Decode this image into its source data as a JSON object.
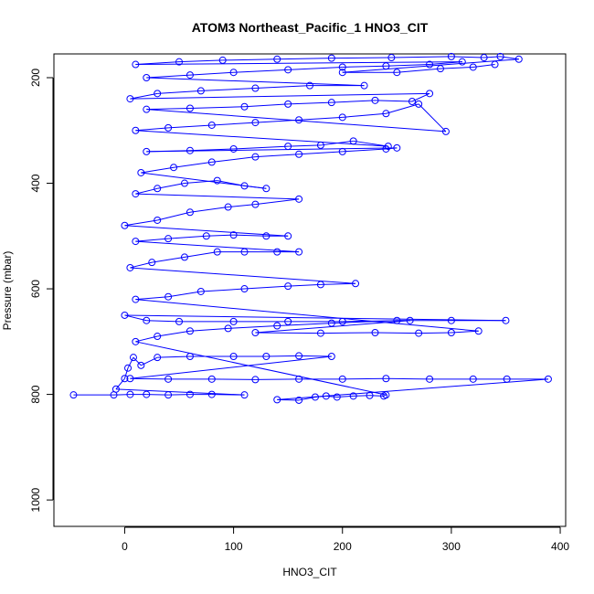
{
  "chart_data": {
    "type": "scatter",
    "title": "ATOM3 Northeast_Pacific_1 HNO3_CIT",
    "xlabel": "HNO3_CIT",
    "ylabel": "Pressure (mbar)",
    "xlim": [
      -65,
      405
    ],
    "ylim": [
      1050,
      155
    ],
    "y_reversed": true,
    "x_ticks": [
      0,
      100,
      200,
      300,
      400
    ],
    "y_ticks": [
      200,
      400,
      600,
      800,
      1000
    ],
    "marker": "open-circle",
    "connect_points": true,
    "color": "#0000ff",
    "series": [
      {
        "points": [
          [
            -47,
            801
          ],
          [
            -10,
            801
          ],
          [
            5,
            800
          ],
          [
            20,
            800
          ],
          [
            40,
            801
          ],
          [
            60,
            800
          ],
          [
            80,
            800
          ],
          [
            110,
            801
          ],
          [
            -8,
            790
          ],
          [
            0,
            770
          ],
          [
            3,
            750
          ],
          [
            8,
            730
          ],
          [
            15,
            745
          ],
          [
            30,
            730
          ],
          [
            60,
            728
          ],
          [
            100,
            728
          ],
          [
            130,
            728
          ],
          [
            160,
            727
          ],
          [
            190,
            728
          ],
          [
            5,
            770
          ],
          [
            40,
            771
          ],
          [
            80,
            771
          ],
          [
            120,
            772
          ],
          [
            160,
            771
          ],
          [
            200,
            771
          ],
          [
            240,
            770
          ],
          [
            280,
            771
          ],
          [
            320,
            771
          ],
          [
            351,
            771
          ],
          [
            389,
            771
          ],
          [
            140,
            810
          ],
          [
            160,
            811
          ],
          [
            175,
            805
          ],
          [
            185,
            803
          ],
          [
            195,
            805
          ],
          [
            210,
            803
          ],
          [
            225,
            802
          ],
          [
            238,
            803
          ],
          [
            240,
            801
          ],
          [
            10,
            700
          ],
          [
            30,
            690
          ],
          [
            60,
            680
          ],
          [
            95,
            675
          ],
          [
            140,
            670
          ],
          [
            190,
            665
          ],
          [
            250,
            660
          ],
          [
            300,
            660
          ],
          [
            350,
            660
          ],
          [
            0,
            650
          ],
          [
            20,
            660
          ],
          [
            50,
            662
          ],
          [
            100,
            662
          ],
          [
            150,
            662
          ],
          [
            200,
            662
          ],
          [
            262,
            660
          ],
          [
            120,
            683
          ],
          [
            180,
            684
          ],
          [
            230,
            683
          ],
          [
            270,
            684
          ],
          [
            300,
            683
          ],
          [
            325,
            680
          ],
          [
            10,
            620
          ],
          [
            40,
            615
          ],
          [
            70,
            605
          ],
          [
            110,
            600
          ],
          [
            150,
            595
          ],
          [
            180,
            592
          ],
          [
            212,
            590
          ],
          [
            5,
            560
          ],
          [
            25,
            550
          ],
          [
            55,
            540
          ],
          [
            85,
            530
          ],
          [
            110,
            530
          ],
          [
            140,
            530
          ],
          [
            160,
            530
          ],
          [
            10,
            510
          ],
          [
            40,
            505
          ],
          [
            75,
            500
          ],
          [
            100,
            498
          ],
          [
            130,
            500
          ],
          [
            150,
            500
          ],
          [
            0,
            480
          ],
          [
            30,
            470
          ],
          [
            60,
            455
          ],
          [
            95,
            445
          ],
          [
            120,
            440
          ],
          [
            160,
            430
          ],
          [
            10,
            420
          ],
          [
            30,
            410
          ],
          [
            55,
            400
          ],
          [
            85,
            395
          ],
          [
            110,
            405
          ],
          [
            130,
            410
          ],
          [
            15,
            380
          ],
          [
            45,
            370
          ],
          [
            80,
            360
          ],
          [
            120,
            350
          ],
          [
            160,
            345
          ],
          [
            200,
            340
          ],
          [
            240,
            335
          ],
          [
            250,
            333
          ],
          [
            20,
            340
          ],
          [
            60,
            338
          ],
          [
            100,
            335
          ],
          [
            150,
            330
          ],
          [
            180,
            328
          ],
          [
            210,
            320
          ],
          [
            242,
            330
          ],
          [
            10,
            300
          ],
          [
            40,
            295
          ],
          [
            80,
            290
          ],
          [
            120,
            285
          ],
          [
            160,
            280
          ],
          [
            200,
            275
          ],
          [
            240,
            268
          ],
          [
            270,
            250
          ],
          [
            295,
            302
          ],
          [
            20,
            260
          ],
          [
            60,
            258
          ],
          [
            110,
            255
          ],
          [
            150,
            250
          ],
          [
            190,
            247
          ],
          [
            230,
            243
          ],
          [
            264,
            245
          ],
          [
            280,
            230
          ],
          [
            5,
            240
          ],
          [
            30,
            230
          ],
          [
            70,
            225
          ],
          [
            120,
            220
          ],
          [
            170,
            215
          ],
          [
            220,
            215
          ],
          [
            20,
            200
          ],
          [
            60,
            195
          ],
          [
            100,
            190
          ],
          [
            150,
            185
          ],
          [
            200,
            180
          ],
          [
            240,
            178
          ],
          [
            280,
            175
          ],
          [
            310,
            170
          ],
          [
            10,
            175
          ],
          [
            50,
            170
          ],
          [
            90,
            167
          ],
          [
            140,
            165
          ],
          [
            190,
            163
          ],
          [
            245,
            162
          ],
          [
            300,
            160
          ],
          [
            330,
            162
          ],
          [
            345,
            160
          ],
          [
            362,
            165
          ],
          [
            200,
            190
          ],
          [
            250,
            190
          ],
          [
            290,
            183
          ],
          [
            320,
            180
          ],
          [
            340,
            175
          ]
        ]
      }
    ]
  }
}
